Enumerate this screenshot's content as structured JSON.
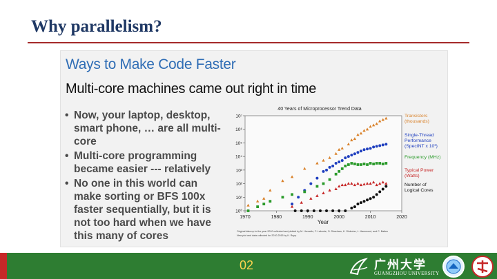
{
  "slide": {
    "title": "Why parallelism?",
    "page_number": "02"
  },
  "embedded_slide": {
    "heading": "Ways to Make Code Faster",
    "subheading": "Multi-core machines came out right in time",
    "bullets": [
      "Now, your laptop, desktop, smart phone, … are all multi-core",
      "Multi-core programming became easier --- relatively",
      "No one in this world can make sorting or BFS 100x faster sequentially, but it is not too hard when we have this many of cores"
    ]
  },
  "footer": {
    "logo_cn": "广州大学",
    "logo_en": "GUANGZHOU UNIVERSITY"
  },
  "colors": {
    "title": "#1f3864",
    "rule": "#a52a2a",
    "heading": "#2f6db5",
    "footer_bg": "#2e7d32",
    "page_number": "#ffd54f",
    "transistors": "#d9822b",
    "single_thread": "#1f3fbf",
    "frequency": "#2a9a2a",
    "power": "#c62828",
    "cores": "#111111"
  },
  "chart_data": {
    "type": "scatter",
    "title": "40 Years of Microprocessor Trend Data",
    "xlabel": "Year",
    "ylabel": "",
    "xlim": [
      1970,
      2020
    ],
    "ylim_log10": [
      0,
      7
    ],
    "x_ticks": [
      "1970",
      "1980",
      "1990",
      "2000",
      "2010",
      "2020"
    ],
    "y_ticks": [
      "10⁰",
      "10¹",
      "10²",
      "10³",
      "10⁴",
      "10⁵",
      "10⁶",
      "10⁷"
    ],
    "series": [
      {
        "name": "Transistors (thousands)",
        "color": "#d9822b",
        "marker": "triangle",
        "points": [
          [
            1971,
            0.4
          ],
          [
            1974,
            0.7
          ],
          [
            1976,
            0.9
          ],
          [
            1978,
            1.5
          ],
          [
            1982,
            2.2
          ],
          [
            1985,
            2.5
          ],
          [
            1989,
            3.1
          ],
          [
            1993,
            3.5
          ],
          [
            1995,
            3.7
          ],
          [
            1997,
            3.9
          ],
          [
            1999,
            4.2
          ],
          [
            2000,
            4.5
          ],
          [
            2001,
            4.6
          ],
          [
            2003,
            4.9
          ],
          [
            2004,
            5.2
          ],
          [
            2005,
            5.3
          ],
          [
            2006,
            5.6
          ],
          [
            2007,
            5.7
          ],
          [
            2008,
            5.9
          ],
          [
            2009,
            6.0
          ],
          [
            2010,
            6.2
          ],
          [
            2011,
            6.3
          ],
          [
            2012,
            6.4
          ],
          [
            2013,
            6.6
          ],
          [
            2014,
            6.7
          ],
          [
            2015,
            6.8
          ]
        ]
      },
      {
        "name": "Single-Thread Performance (SpecINT x 10³)",
        "color": "#1f3fbf",
        "marker": "circle",
        "points": [
          [
            1985,
            0.5
          ],
          [
            1987,
            1.0
          ],
          [
            1989,
            1.5
          ],
          [
            1991,
            2.0
          ],
          [
            1993,
            2.4
          ],
          [
            1995,
            2.9
          ],
          [
            1996,
            3.0
          ],
          [
            1997,
            3.2
          ],
          [
            1998,
            3.3
          ],
          [
            1999,
            3.5
          ],
          [
            2000,
            3.6
          ],
          [
            2001,
            3.7
          ],
          [
            2002,
            3.9
          ],
          [
            2003,
            4.0
          ],
          [
            2004,
            4.1
          ],
          [
            2005,
            4.2
          ],
          [
            2006,
            4.3
          ],
          [
            2007,
            4.4
          ],
          [
            2008,
            4.5
          ],
          [
            2009,
            4.55
          ],
          [
            2010,
            4.6
          ],
          [
            2011,
            4.7
          ],
          [
            2012,
            4.75
          ],
          [
            2013,
            4.8
          ],
          [
            2014,
            4.85
          ],
          [
            2015,
            4.9
          ]
        ]
      },
      {
        "name": "Frequency (MHz)",
        "color": "#2a9a2a",
        "marker": "square",
        "points": [
          [
            1971,
            0
          ],
          [
            1974,
            0.3
          ],
          [
            1976,
            0.5
          ],
          [
            1978,
            0.7
          ],
          [
            1982,
            1.0
          ],
          [
            1985,
            1.2
          ],
          [
            1989,
            1.4
          ],
          [
            1993,
            1.8
          ],
          [
            1995,
            2.0
          ],
          [
            1997,
            2.3
          ],
          [
            1999,
            2.7
          ],
          [
            2000,
            2.9
          ],
          [
            2001,
            3.1
          ],
          [
            2002,
            3.3
          ],
          [
            2003,
            3.4
          ],
          [
            2004,
            3.5
          ],
          [
            2005,
            3.45
          ],
          [
            2006,
            3.4
          ],
          [
            2007,
            3.4
          ],
          [
            2008,
            3.45
          ],
          [
            2009,
            3.4
          ],
          [
            2010,
            3.5
          ],
          [
            2011,
            3.45
          ],
          [
            2012,
            3.5
          ],
          [
            2013,
            3.5
          ],
          [
            2014,
            3.45
          ],
          [
            2015,
            3.5
          ]
        ]
      },
      {
        "name": "Typical Power (Watts)",
        "color": "#c62828",
        "marker": "triangle",
        "points": [
          [
            1985,
            0.3
          ],
          [
            1988,
            0.6
          ],
          [
            1991,
            0.9
          ],
          [
            1993,
            1.1
          ],
          [
            1995,
            1.3
          ],
          [
            1997,
            1.5
          ],
          [
            1999,
            1.6
          ],
          [
            2000,
            1.8
          ],
          [
            2001,
            1.9
          ],
          [
            2002,
            1.9
          ],
          [
            2003,
            2.0
          ],
          [
            2004,
            2.0
          ],
          [
            2005,
            1.9
          ],
          [
            2006,
            2.0
          ],
          [
            2007,
            1.9
          ],
          [
            2008,
            1.95
          ],
          [
            2009,
            2.0
          ],
          [
            2010,
            2.0
          ],
          [
            2011,
            2.1
          ],
          [
            2012,
            1.9
          ],
          [
            2013,
            2.0
          ],
          [
            2014,
            2.1
          ],
          [
            2015,
            2.0
          ]
        ]
      },
      {
        "name": "Number of Logical Cores",
        "color": "#111111",
        "marker": "circle",
        "points": [
          [
            1986,
            0
          ],
          [
            1988,
            0
          ],
          [
            1990,
            0
          ],
          [
            1992,
            0
          ],
          [
            1994,
            0
          ],
          [
            1996,
            0
          ],
          [
            1998,
            0
          ],
          [
            2000,
            0
          ],
          [
            2002,
            0
          ],
          [
            2004,
            0.2
          ],
          [
            2005,
            0.3
          ],
          [
            2006,
            0.5
          ],
          [
            2007,
            0.6
          ],
          [
            2008,
            0.7
          ],
          [
            2009,
            0.8
          ],
          [
            2010,
            0.9
          ],
          [
            2011,
            1.0
          ],
          [
            2012,
            1.2
          ],
          [
            2013,
            1.4
          ],
          [
            2014,
            1.6
          ],
          [
            2015,
            1.8
          ]
        ]
      }
    ],
    "legend_placement": "right",
    "notes": [
      "Original data up to the year 2010 collected and plotted by M. Horowitz, F. Labonte, O. Shacham, K. Olukotun, L. Hammond, and C. Batten",
      "New plot and data collected for 2010-2015 by K. Rupp"
    ]
  }
}
